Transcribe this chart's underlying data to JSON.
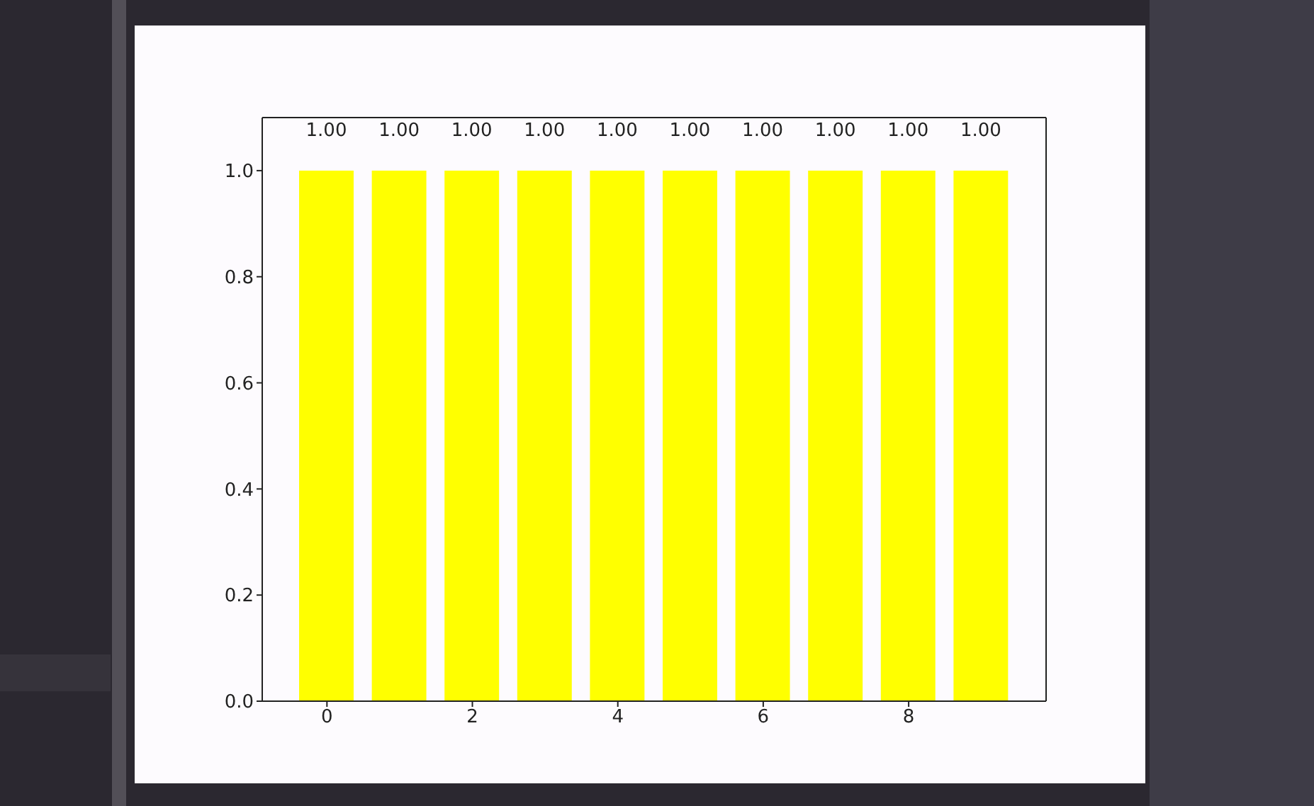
{
  "chart_data": {
    "type": "bar",
    "x": [
      0,
      1,
      2,
      3,
      4,
      5,
      6,
      7,
      8,
      9
    ],
    "values": [
      1,
      1,
      1,
      1,
      1,
      1,
      1,
      1,
      1,
      1
    ],
    "color": "#ffff00",
    "value_labels": [
      "1.00",
      "1.00",
      "1.00",
      "1.00",
      "1.00",
      "1.00",
      "1.00",
      "1.00",
      "1.00",
      "1.00"
    ],
    "xlim": [
      -0.89,
      9.89
    ],
    "xticks": [
      0,
      2,
      4,
      6,
      8
    ],
    "ylim": [
      0,
      1.1
    ],
    "yticks": [
      {
        "value": 0,
        "label": "0.0"
      },
      {
        "value": 0.2,
        "label": "0.2"
      },
      {
        "value": 0.4,
        "label": "0.4"
      },
      {
        "value": 0.6,
        "label": "0.6"
      },
      {
        "value": 0.8,
        "label": "0.8"
      },
      {
        "value": 1,
        "label": "1.0"
      }
    ]
  }
}
